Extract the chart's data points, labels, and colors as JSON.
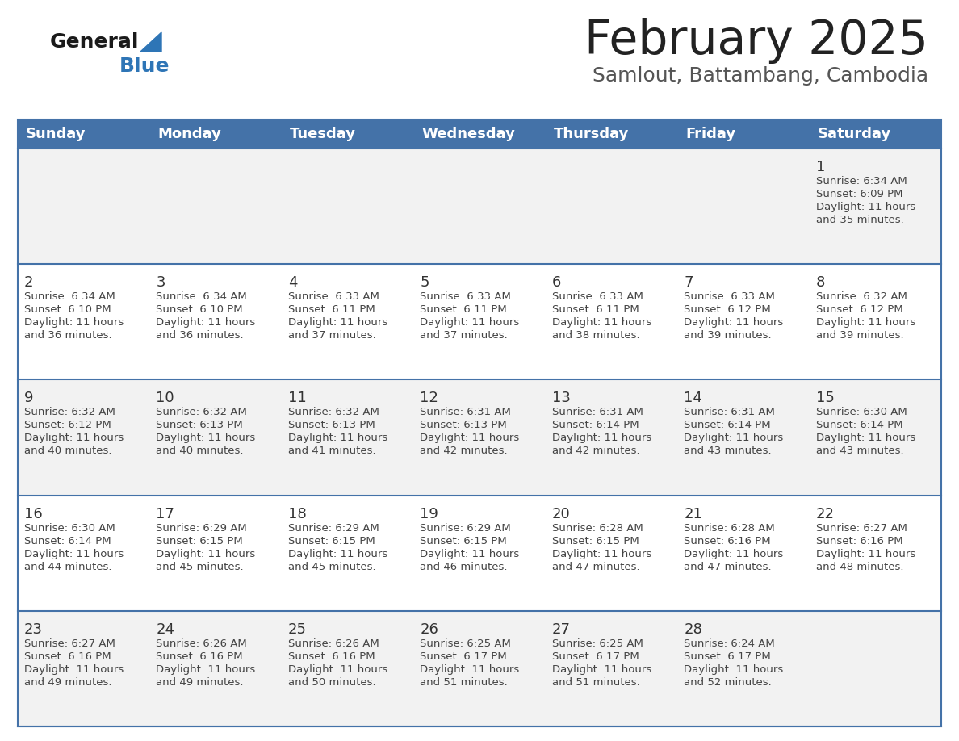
{
  "title": "February 2025",
  "subtitle": "Samlout, Battambang, Cambodia",
  "days_of_week": [
    "Sunday",
    "Monday",
    "Tuesday",
    "Wednesday",
    "Thursday",
    "Friday",
    "Saturday"
  ],
  "header_bg": "#4472A8",
  "header_text": "#FFFFFF",
  "row_bg_even": "#FFFFFF",
  "row_bg_odd": "#F2F2F2",
  "cell_border_color": "#4472A8",
  "day_number_color": "#333333",
  "text_color": "#444444",
  "title_color": "#222222",
  "subtitle_color": "#555555",
  "logo_general_color": "#1a1a1a",
  "logo_blue_color": "#2E75B6",
  "calendar_data": [
    [
      null,
      null,
      null,
      null,
      null,
      null,
      {
        "day": 1,
        "sunrise": "6:34 AM",
        "sunset": "6:09 PM",
        "daylight": "11 hours",
        "daylight2": "and 35 minutes."
      }
    ],
    [
      {
        "day": 2,
        "sunrise": "6:34 AM",
        "sunset": "6:10 PM",
        "daylight": "11 hours",
        "daylight2": "and 36 minutes."
      },
      {
        "day": 3,
        "sunrise": "6:34 AM",
        "sunset": "6:10 PM",
        "daylight": "11 hours",
        "daylight2": "and 36 minutes."
      },
      {
        "day": 4,
        "sunrise": "6:33 AM",
        "sunset": "6:11 PM",
        "daylight": "11 hours",
        "daylight2": "and 37 minutes."
      },
      {
        "day": 5,
        "sunrise": "6:33 AM",
        "sunset": "6:11 PM",
        "daylight": "11 hours",
        "daylight2": "and 37 minutes."
      },
      {
        "day": 6,
        "sunrise": "6:33 AM",
        "sunset": "6:11 PM",
        "daylight": "11 hours",
        "daylight2": "and 38 minutes."
      },
      {
        "day": 7,
        "sunrise": "6:33 AM",
        "sunset": "6:12 PM",
        "daylight": "11 hours",
        "daylight2": "and 39 minutes."
      },
      {
        "day": 8,
        "sunrise": "6:32 AM",
        "sunset": "6:12 PM",
        "daylight": "11 hours",
        "daylight2": "and 39 minutes."
      }
    ],
    [
      {
        "day": 9,
        "sunrise": "6:32 AM",
        "sunset": "6:12 PM",
        "daylight": "11 hours",
        "daylight2": "and 40 minutes."
      },
      {
        "day": 10,
        "sunrise": "6:32 AM",
        "sunset": "6:13 PM",
        "daylight": "11 hours",
        "daylight2": "and 40 minutes."
      },
      {
        "day": 11,
        "sunrise": "6:32 AM",
        "sunset": "6:13 PM",
        "daylight": "11 hours",
        "daylight2": "and 41 minutes."
      },
      {
        "day": 12,
        "sunrise": "6:31 AM",
        "sunset": "6:13 PM",
        "daylight": "11 hours",
        "daylight2": "and 42 minutes."
      },
      {
        "day": 13,
        "sunrise": "6:31 AM",
        "sunset": "6:14 PM",
        "daylight": "11 hours",
        "daylight2": "and 42 minutes."
      },
      {
        "day": 14,
        "sunrise": "6:31 AM",
        "sunset": "6:14 PM",
        "daylight": "11 hours",
        "daylight2": "and 43 minutes."
      },
      {
        "day": 15,
        "sunrise": "6:30 AM",
        "sunset": "6:14 PM",
        "daylight": "11 hours",
        "daylight2": "and 43 minutes."
      }
    ],
    [
      {
        "day": 16,
        "sunrise": "6:30 AM",
        "sunset": "6:14 PM",
        "daylight": "11 hours",
        "daylight2": "and 44 minutes."
      },
      {
        "day": 17,
        "sunrise": "6:29 AM",
        "sunset": "6:15 PM",
        "daylight": "11 hours",
        "daylight2": "and 45 minutes."
      },
      {
        "day": 18,
        "sunrise": "6:29 AM",
        "sunset": "6:15 PM",
        "daylight": "11 hours",
        "daylight2": "and 45 minutes."
      },
      {
        "day": 19,
        "sunrise": "6:29 AM",
        "sunset": "6:15 PM",
        "daylight": "11 hours",
        "daylight2": "and 46 minutes."
      },
      {
        "day": 20,
        "sunrise": "6:28 AM",
        "sunset": "6:15 PM",
        "daylight": "11 hours",
        "daylight2": "and 47 minutes."
      },
      {
        "day": 21,
        "sunrise": "6:28 AM",
        "sunset": "6:16 PM",
        "daylight": "11 hours",
        "daylight2": "and 47 minutes."
      },
      {
        "day": 22,
        "sunrise": "6:27 AM",
        "sunset": "6:16 PM",
        "daylight": "11 hours",
        "daylight2": "and 48 minutes."
      }
    ],
    [
      {
        "day": 23,
        "sunrise": "6:27 AM",
        "sunset": "6:16 PM",
        "daylight": "11 hours",
        "daylight2": "and 49 minutes."
      },
      {
        "day": 24,
        "sunrise": "6:26 AM",
        "sunset": "6:16 PM",
        "daylight": "11 hours",
        "daylight2": "and 49 minutes."
      },
      {
        "day": 25,
        "sunrise": "6:26 AM",
        "sunset": "6:16 PM",
        "daylight": "11 hours",
        "daylight2": "and 50 minutes."
      },
      {
        "day": 26,
        "sunrise": "6:25 AM",
        "sunset": "6:17 PM",
        "daylight": "11 hours",
        "daylight2": "and 51 minutes."
      },
      {
        "day": 27,
        "sunrise": "6:25 AM",
        "sunset": "6:17 PM",
        "daylight": "11 hours",
        "daylight2": "and 51 minutes."
      },
      {
        "day": 28,
        "sunrise": "6:24 AM",
        "sunset": "6:17 PM",
        "daylight": "11 hours",
        "daylight2": "and 52 minutes."
      },
      null
    ]
  ]
}
